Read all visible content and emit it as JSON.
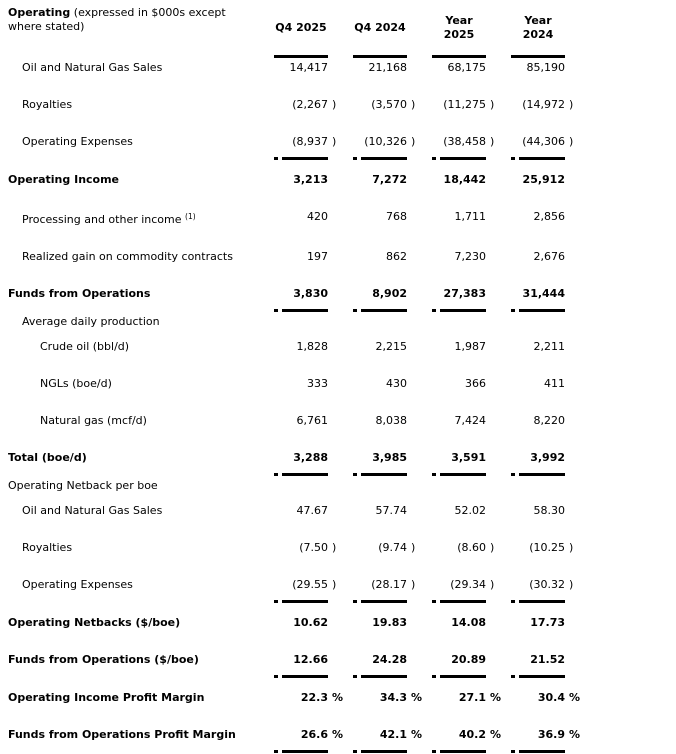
{
  "table": {
    "header": {
      "title_bold": "Operating",
      "title_rest": " (expressed in $000s except where stated)",
      "columns": [
        "Q4 2025",
        "Q4 2024",
        "Year 2025",
        "Year 2024"
      ]
    },
    "rows": [
      {
        "label": "Oil and Natural Gas Sales",
        "indent": 1,
        "bold": false,
        "values": [
          "14,417",
          "21,168",
          "68,175",
          "85,190"
        ],
        "hang": "",
        "rule_after": false
      },
      {
        "label": "Royalties",
        "indent": 1,
        "bold": false,
        "values": [
          "(2,267",
          "(3,570",
          "(11,275",
          "(14,972"
        ],
        "hang": ")",
        "rule_after": false
      },
      {
        "label": "Operating Expenses",
        "indent": 1,
        "bold": false,
        "values": [
          "(8,937",
          "(10,326",
          "(38,458",
          "(44,306"
        ],
        "hang": ")",
        "rule_after": true
      },
      {
        "label": "Operating Income",
        "indent": 0,
        "bold": true,
        "values": [
          "3,213",
          "7,272",
          "18,442",
          "25,912"
        ],
        "hang": "",
        "rule_after": false
      },
      {
        "label": "Processing and other income ",
        "sup": "(1)",
        "indent": 1,
        "bold": false,
        "values": [
          "420",
          "768",
          "1,711",
          "2,856"
        ],
        "hang": "",
        "rule_after": false
      },
      {
        "label": "Realized gain on commodity contracts",
        "indent": 1,
        "bold": false,
        "values": [
          "197",
          "862",
          "7,230",
          "2,676"
        ],
        "hang": "",
        "rule_after": false
      },
      {
        "label": "Funds from Operations",
        "indent": 0,
        "bold": true,
        "values": [
          "3,830",
          "8,902",
          "27,383",
          "31,444"
        ],
        "hang": "",
        "rule_after": true
      },
      {
        "label": "Average daily production",
        "indent": 1,
        "bold": false,
        "section": true,
        "values": [],
        "hang": "",
        "rule_after": false
      },
      {
        "label": "Crude oil (bbl/d)",
        "indent": 2,
        "bold": false,
        "values": [
          "1,828",
          "2,215",
          "1,987",
          "2,211"
        ],
        "hang": "",
        "rule_after": false
      },
      {
        "label": "NGLs (boe/d)",
        "indent": 2,
        "bold": false,
        "values": [
          "333",
          "430",
          "366",
          "411"
        ],
        "hang": "",
        "rule_after": false
      },
      {
        "label": "Natural gas (mcf/d)",
        "indent": 2,
        "bold": false,
        "values": [
          "6,761",
          "8,038",
          "7,424",
          "8,220"
        ],
        "hang": "",
        "rule_after": false
      },
      {
        "label": "Total (boe/d)",
        "indent": 0,
        "bold": true,
        "values": [
          "3,288",
          "3,985",
          "3,591",
          "3,992"
        ],
        "hang": "",
        "rule_after": true
      },
      {
        "label": "Operating Netback per boe",
        "indent": 0,
        "bold": false,
        "section": true,
        "values": [],
        "hang": "",
        "rule_after": false
      },
      {
        "label": "Oil and Natural Gas Sales",
        "indent": 1,
        "bold": false,
        "values": [
          "47.67",
          "57.74",
          "52.02",
          "58.30"
        ],
        "hang": "",
        "rule_after": false
      },
      {
        "label": "Royalties",
        "indent": 1,
        "bold": false,
        "values": [
          "(7.50",
          "(9.74",
          "(8.60",
          "(10.25"
        ],
        "hang": ")",
        "rule_after": false
      },
      {
        "label": "Operating Expenses",
        "indent": 1,
        "bold": false,
        "values": [
          "(29.55",
          "(28.17",
          "(29.34",
          "(30.32"
        ],
        "hang": ")",
        "rule_after": true
      },
      {
        "label": "Operating Netbacks ($/boe)",
        "indent": 0,
        "bold": true,
        "values": [
          "10.62",
          "19.83",
          "14.08",
          "17.73"
        ],
        "hang": "",
        "rule_after": false
      },
      {
        "label": "Funds from Operations ($/boe)",
        "indent": 0,
        "bold": true,
        "values": [
          "12.66",
          "24.28",
          "20.89",
          "21.52"
        ],
        "hang": "",
        "rule_after": true
      },
      {
        "label": "Operating Income Profit Margin",
        "indent": 0,
        "bold": true,
        "values": [
          "22.3",
          "34.3",
          "27.1",
          "30.4"
        ],
        "hang": "%",
        "rule_after": false
      },
      {
        "label": "Funds from Operations Profit Margin",
        "indent": 0,
        "bold": true,
        "values": [
          "26.6",
          "42.1",
          "40.2",
          "36.9"
        ],
        "hang": "%",
        "rule_after": true
      }
    ]
  }
}
